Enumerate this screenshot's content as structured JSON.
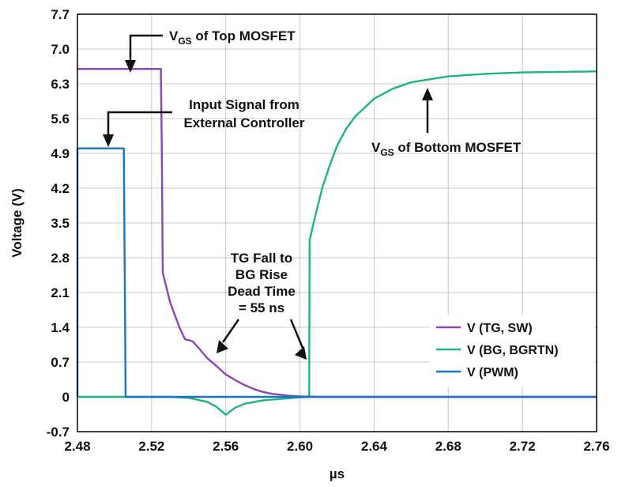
{
  "chart_data": {
    "type": "line",
    "xlabel": "µs",
    "ylabel": "Voltage (V)",
    "xlim": [
      2.48,
      2.76
    ],
    "ylim": [
      -0.7,
      7.7
    ],
    "x_ticks": [
      "2.48",
      "2.52",
      "2.56",
      "2.60",
      "2.64",
      "2.68",
      "2.72",
      "2.76"
    ],
    "y_ticks": [
      "7.7",
      "7.0",
      "6.3",
      "5.6",
      "4.9",
      "4.2",
      "3.5",
      "2.8",
      "2.1",
      "1.4",
      "0.7",
      "0",
      "-0.7"
    ],
    "grid": true,
    "legend_position": "bottom-right",
    "series": [
      {
        "name": "V (TG, SW)",
        "color": "#8e44b5",
        "points": [
          [
            2.48,
            6.6
          ],
          [
            2.525,
            6.6
          ],
          [
            2.5255,
            5.0
          ],
          [
            2.526,
            2.5
          ],
          [
            2.53,
            1.9
          ],
          [
            2.535,
            1.4
          ],
          [
            2.538,
            1.16
          ],
          [
            2.542,
            1.12
          ],
          [
            2.545,
            1.0
          ],
          [
            2.55,
            0.78
          ],
          [
            2.555,
            0.62
          ],
          [
            2.56,
            0.45
          ],
          [
            2.565,
            0.34
          ],
          [
            2.57,
            0.24
          ],
          [
            2.575,
            0.16
          ],
          [
            2.58,
            0.1
          ],
          [
            2.585,
            0.06
          ],
          [
            2.59,
            0.04
          ],
          [
            2.595,
            0.02
          ],
          [
            2.6,
            0.01
          ],
          [
            2.61,
            0.0
          ],
          [
            2.76,
            0.0
          ]
        ]
      },
      {
        "name": "V (BG, BGRTN)",
        "color": "#1db67a",
        "points": [
          [
            2.48,
            0.0
          ],
          [
            2.53,
            0.0
          ],
          [
            2.54,
            -0.02
          ],
          [
            2.55,
            -0.1
          ],
          [
            2.555,
            -0.2
          ],
          [
            2.56,
            -0.36
          ],
          [
            2.565,
            -0.22
          ],
          [
            2.57,
            -0.14
          ],
          [
            2.58,
            -0.07
          ],
          [
            2.59,
            -0.04
          ],
          [
            2.6,
            -0.01
          ],
          [
            2.605,
            0.0
          ],
          [
            2.6052,
            3.15
          ],
          [
            2.608,
            3.6
          ],
          [
            2.612,
            4.2
          ],
          [
            2.616,
            4.65
          ],
          [
            2.62,
            5.05
          ],
          [
            2.625,
            5.4
          ],
          [
            2.63,
            5.65
          ],
          [
            2.64,
            6.0
          ],
          [
            2.65,
            6.2
          ],
          [
            2.66,
            6.33
          ],
          [
            2.68,
            6.45
          ],
          [
            2.7,
            6.5
          ],
          [
            2.72,
            6.53
          ],
          [
            2.76,
            6.55
          ]
        ]
      },
      {
        "name": "V (PWM)",
        "color": "#1a74c6",
        "points": [
          [
            2.48,
            0.0
          ],
          [
            2.48,
            5.0
          ],
          [
            2.505,
            5.0
          ],
          [
            2.506,
            0.0
          ],
          [
            2.76,
            0.0
          ]
        ]
      }
    ],
    "annotations": [
      {
        "id": "top",
        "main": "V",
        "sub": "GS",
        "rest": " of Top MOSFET"
      },
      {
        "id": "input",
        "lines": [
          "Input Signal from",
          "External Controller"
        ]
      },
      {
        "id": "bottom",
        "main": "V",
        "sub": "GS",
        "rest": " of Bottom MOSFET"
      },
      {
        "id": "dead",
        "lines": [
          "TG Fall to",
          "BG Rise",
          "Dead Time",
          "= 55 ns"
        ]
      }
    ]
  }
}
